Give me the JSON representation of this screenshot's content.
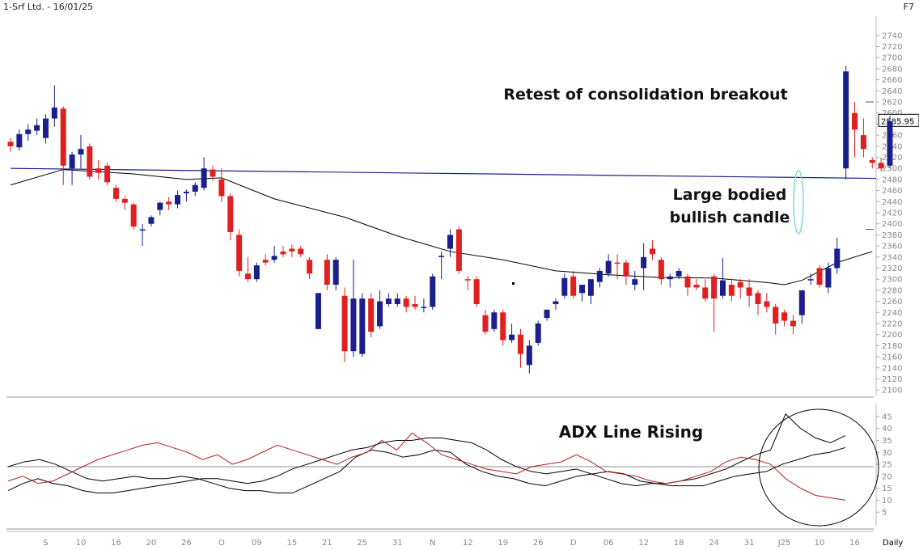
{
  "header": {
    "title": "1-Srf Ltd. - 16/01/25",
    "shortcut": "F7"
  },
  "annotations": {
    "retest": "Retest of consolidation breakout",
    "large_line1": "Large bodied",
    "large_line2": "bullish candle",
    "adx": "ADX Line Rising"
  },
  "colors": {
    "up": "#1a1f8c",
    "down": "#e02020",
    "ma": "#000000",
    "hline": "#1a1f8c",
    "ellipse": "#7fd6e0",
    "adx": "#000000",
    "diplus": "#000000",
    "diminus": "#b02020"
  },
  "chart_data": [
    {
      "type": "candlestick",
      "ylim": [
        2090,
        2750
      ],
      "y_ticks": [
        2100,
        2120,
        2140,
        2160,
        2180,
        2200,
        2220,
        2240,
        2260,
        2280,
        2300,
        2320,
        2340,
        2360,
        2380,
        2400,
        2420,
        2440,
        2460,
        2480,
        2500,
        2520,
        2540,
        2560,
        2580,
        2600,
        2620,
        2640,
        2660,
        2680,
        2700,
        2720,
        2740
      ],
      "last_price_label": "2585.95",
      "x_labels": [
        "S",
        "10",
        "16",
        "20",
        "26",
        "O",
        "09",
        "15",
        "21",
        "25",
        "31",
        "N",
        "12",
        "19",
        "26",
        "D",
        "06",
        "12",
        "18",
        "24",
        "31",
        "J25",
        "10",
        "16"
      ],
      "x_label_bars": [
        4,
        8,
        12,
        16,
        20,
        24,
        28,
        32,
        36,
        40,
        44,
        48,
        52,
        56,
        60,
        64,
        68,
        72,
        76,
        80,
        84,
        88,
        92,
        96
      ],
      "x_axis_suffix": "Daily",
      "horizontal_line": [
        2500,
        2482
      ],
      "candles": [
        [
          2548,
          2555,
          2530,
          2540
        ],
        [
          2538,
          2570,
          2532,
          2562
        ],
        [
          2562,
          2580,
          2550,
          2570
        ],
        [
          2568,
          2590,
          2560,
          2578
        ],
        [
          2555,
          2598,
          2545,
          2590
        ],
        [
          2590,
          2650,
          2575,
          2610
        ],
        [
          2608,
          2612,
          2470,
          2505
        ],
        [
          2500,
          2530,
          2470,
          2525
        ],
        [
          2525,
          2560,
          2500,
          2535
        ],
        [
          2540,
          2545,
          2480,
          2485
        ],
        [
          2500,
          2515,
          2480,
          2492
        ],
        [
          2505,
          2510,
          2470,
          2475
        ],
        [
          2465,
          2470,
          2440,
          2445
        ],
        [
          2445,
          2450,
          2425,
          2438
        ],
        [
          2435,
          2438,
          2390,
          2395
        ],
        [
          2388,
          2400,
          2360,
          2390
        ],
        [
          2400,
          2415,
          2395,
          2412
        ],
        [
          2425,
          2440,
          2415,
          2438
        ],
        [
          2440,
          2448,
          2425,
          2435
        ],
        [
          2435,
          2460,
          2428,
          2452
        ],
        [
          2455,
          2462,
          2440,
          2458
        ],
        [
          2458,
          2475,
          2450,
          2470
        ],
        [
          2465,
          2520,
          2460,
          2500
        ],
        [
          2498,
          2505,
          2478,
          2485
        ],
        [
          2480,
          2500,
          2440,
          2450
        ],
        [
          2450,
          2455,
          2370,
          2385
        ],
        [
          2380,
          2390,
          2305,
          2315
        ],
        [
          2310,
          2340,
          2295,
          2300
        ],
        [
          2300,
          2330,
          2295,
          2325
        ],
        [
          2335,
          2345,
          2325,
          2330
        ],
        [
          2335,
          2360,
          2330,
          2342
        ],
        [
          2350,
          2360,
          2340,
          2345
        ],
        [
          2355,
          2362,
          2340,
          2350
        ],
        [
          2355,
          2360,
          2340,
          2345
        ],
        [
          2335,
          2340,
          2300,
          2310
        ],
        [
          2210,
          2275,
          2210,
          2275
        ],
        [
          2335,
          2345,
          2280,
          2290
        ],
        [
          2290,
          2340,
          2280,
          2335
        ],
        [
          2270,
          2285,
          2150,
          2170
        ],
        [
          2170,
          2335,
          2160,
          2265
        ],
        [
          2165,
          2275,
          2160,
          2265
        ],
        [
          2265,
          2275,
          2195,
          2205
        ],
        [
          2215,
          2280,
          2210,
          2260
        ],
        [
          2255,
          2275,
          2250,
          2265
        ],
        [
          2255,
          2275,
          2250,
          2265
        ],
        [
          2265,
          2270,
          2240,
          2250
        ],
        [
          2255,
          2270,
          2245,
          2250
        ],
        [
          2250,
          2265,
          2240,
          2250
        ],
        [
          2250,
          2310,
          2245,
          2305
        ],
        [
          2340,
          2350,
          2300,
          2342
        ],
        [
          2355,
          2390,
          2340,
          2380
        ],
        [
          2390,
          2395,
          2310,
          2315
        ],
        [
          2300,
          2305,
          2280,
          2298
        ],
        [
          2300,
          2305,
          2250,
          2255
        ],
        [
          2235,
          2245,
          2200,
          2205
        ],
        [
          2210,
          2245,
          2205,
          2240
        ],
        [
          2240,
          2245,
          2180,
          2190
        ],
        [
          2190,
          2220,
          2185,
          2200
        ],
        [
          2200,
          2210,
          2140,
          2165
        ],
        [
          2145,
          2190,
          2130,
          2180
        ],
        [
          2185,
          2225,
          2180,
          2220
        ],
        [
          2230,
          2245,
          2225,
          2245
        ],
        [
          2255,
          2265,
          2245,
          2260
        ],
        [
          2270,
          2310,
          2265,
          2302
        ],
        [
          2305,
          2315,
          2265,
          2270
        ],
        [
          2275,
          2290,
          2260,
          2290
        ],
        [
          2270,
          2300,
          2255,
          2300
        ],
        [
          2295,
          2320,
          2285,
          2315
        ],
        [
          2310,
          2345,
          2305,
          2333
        ],
        [
          2330,
          2345,
          2300,
          2328
        ],
        [
          2330,
          2335,
          2290,
          2305
        ],
        [
          2290,
          2315,
          2280,
          2300
        ],
        [
          2320,
          2365,
          2280,
          2340
        ],
        [
          2355,
          2370,
          2335,
          2345
        ],
        [
          2335,
          2340,
          2290,
          2300
        ],
        [
          2300,
          2310,
          2285,
          2305
        ],
        [
          2305,
          2320,
          2300,
          2315
        ],
        [
          2305,
          2310,
          2270,
          2285
        ],
        [
          2290,
          2300,
          2280,
          2285
        ],
        [
          2285,
          2300,
          2260,
          2265
        ],
        [
          2305,
          2310,
          2205,
          2265
        ],
        [
          2270,
          2338,
          2265,
          2298
        ],
        [
          2290,
          2300,
          2260,
          2270
        ],
        [
          2295,
          2300,
          2265,
          2285
        ],
        [
          2285,
          2300,
          2250,
          2270
        ],
        [
          2275,
          2280,
          2235,
          2255
        ],
        [
          2260,
          2275,
          2240,
          2250
        ],
        [
          2250,
          2255,
          2200,
          2220
        ],
        [
          2240,
          2245,
          2215,
          2225
        ],
        [
          2225,
          2235,
          2200,
          2215
        ],
        [
          2235,
          2280,
          2220,
          2280
        ],
        [
          2300,
          2310,
          2290,
          2300
        ],
        [
          2320,
          2325,
          2285,
          2290
        ],
        [
          2285,
          2330,
          2275,
          2320
        ],
        [
          2320,
          2375,
          2310,
          2355
        ],
        [
          2500,
          2685,
          2480,
          2675
        ],
        [
          2600,
          2620,
          2520,
          2570
        ],
        [
          2560,
          2590,
          2520,
          2535
        ],
        [
          2515,
          2520,
          2500,
          2510
        ],
        [
          2510,
          2520,
          2495,
          2500
        ],
        [
          2505,
          2595,
          2500,
          2585
        ]
      ],
      "moving_average": [
        [
          0,
          2470
        ],
        [
          6,
          2498
        ],
        [
          14,
          2490
        ],
        [
          20,
          2480
        ],
        [
          24,
          2483
        ],
        [
          30,
          2445
        ],
        [
          38,
          2412
        ],
        [
          44,
          2378
        ],
        [
          50,
          2350
        ],
        [
          56,
          2335
        ],
        [
          62,
          2315
        ],
        [
          68,
          2308
        ],
        [
          74,
          2303
        ],
        [
          80,
          2302
        ],
        [
          86,
          2294
        ],
        [
          88,
          2290
        ],
        [
          90,
          2298
        ],
        [
          94,
          2330
        ],
        [
          98,
          2350
        ]
      ]
    },
    {
      "type": "line",
      "name": "ADX",
      "ylim": [
        0,
        48
      ],
      "y_ticks": [
        5,
        10,
        15,
        20,
        25,
        30,
        35,
        40,
        45
      ],
      "reference_line": 24,
      "series": [
        {
          "values": [
            14,
            17,
            19,
            17,
            16,
            14,
            13,
            13,
            14,
            15,
            16,
            17,
            18,
            19,
            19,
            18,
            17,
            18,
            20,
            23,
            25,
            27,
            29,
            31,
            32,
            34,
            35,
            35,
            36,
            36,
            35,
            34,
            31,
            27,
            24,
            22,
            21,
            22,
            23,
            21,
            19,
            17,
            16,
            17,
            17,
            18,
            19,
            21,
            23,
            26,
            29,
            31,
            46,
            40,
            36,
            34,
            37
          ]
        },
        {
          "values": [
            24,
            26,
            27,
            25,
            22,
            19,
            18,
            19,
            20,
            19,
            19,
            20,
            19,
            17,
            15,
            14,
            14,
            13,
            13,
            16,
            19,
            22,
            28,
            31,
            30,
            28,
            29,
            31,
            30,
            25,
            22,
            20,
            19,
            17,
            16,
            18,
            20,
            21,
            22,
            21,
            18,
            17,
            16,
            16,
            16,
            18,
            20,
            21,
            22,
            25,
            27,
            29,
            30,
            32
          ]
        },
        {
          "values": [
            18,
            20,
            17,
            18,
            21,
            24,
            27,
            29,
            31,
            33,
            34,
            32,
            30,
            27,
            29,
            25,
            27,
            30,
            33,
            31,
            29,
            27,
            25,
            28,
            30,
            35,
            31,
            38,
            34,
            29,
            27,
            25,
            23,
            22,
            21,
            24,
            25,
            26,
            29,
            26,
            22,
            21,
            20,
            18,
            17,
            18,
            20,
            22,
            26,
            28,
            27,
            25,
            19,
            15,
            12,
            11,
            10
          ]
        }
      ]
    }
  ]
}
